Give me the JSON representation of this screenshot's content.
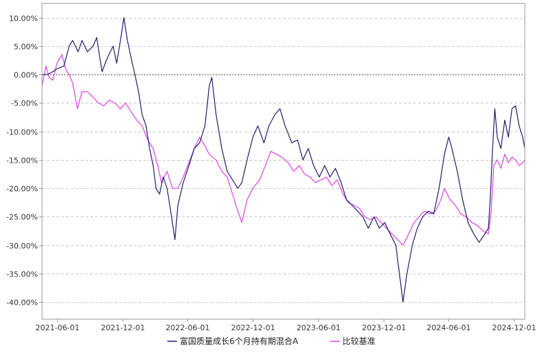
{
  "chart_data": {
    "type": "line",
    "title": "",
    "xlabel": "",
    "ylabel": "",
    "ylim": [
      -43.0,
      12.5
    ],
    "xlim": [
      "2021-04-20",
      "2024-12-31"
    ],
    "grid": true,
    "legend_position": "bottom",
    "y_ticks": [
      10,
      5,
      0,
      -5,
      -10,
      -15,
      -20,
      -25,
      -30,
      -35,
      -40
    ],
    "y_tick_labels": [
      "10.00%",
      "5.00%",
      "0.00%",
      "-5.00%",
      "-10.00%",
      "-15.00%",
      "-20.00%",
      "-25.00%",
      "-30.00%",
      "-35.00%",
      "-40.00%"
    ],
    "x_ticks": [
      "2021-06-01",
      "2021-12-01",
      "2022-06-01",
      "2022-12-01",
      "2023-06-01",
      "2023-12-01",
      "2024-06-01",
      "2024-12-01"
    ],
    "series": [
      {
        "name": "富国质量成长6个月持有期混合A",
        "color": "#1c1c6b",
        "points": [
          [
            "2021-04-20",
            0.0
          ],
          [
            "2021-05-05",
            0.0
          ],
          [
            "2021-05-20",
            0.5
          ],
          [
            "2021-06-01",
            1.0
          ],
          [
            "2021-06-20",
            1.5
          ],
          [
            "2021-07-05",
            5.0
          ],
          [
            "2021-07-15",
            6.0
          ],
          [
            "2021-07-30",
            4.0
          ],
          [
            "2021-08-10",
            6.0
          ],
          [
            "2021-08-25",
            4.0
          ],
          [
            "2021-09-10",
            5.0
          ],
          [
            "2021-09-20",
            6.5
          ],
          [
            "2021-10-05",
            0.5
          ],
          [
            "2021-10-20",
            3.0
          ],
          [
            "2021-11-05",
            5.0
          ],
          [
            "2021-11-15",
            2.0
          ],
          [
            "2021-11-28",
            7.0
          ],
          [
            "2021-12-05",
            10.0
          ],
          [
            "2021-12-15",
            6.0
          ],
          [
            "2021-12-25",
            3.0
          ],
          [
            "2022-01-05",
            0.0
          ],
          [
            "2022-01-15",
            -3.0
          ],
          [
            "2022-01-25",
            -7.0
          ],
          [
            "2022-02-05",
            -9.0
          ],
          [
            "2022-02-15",
            -13.0
          ],
          [
            "2022-02-25",
            -16.0
          ],
          [
            "2022-03-05",
            -20.0
          ],
          [
            "2022-03-15",
            -21.0
          ],
          [
            "2022-03-25",
            -18.0
          ],
          [
            "2022-04-05",
            -20.0
          ],
          [
            "2022-04-15",
            -24.0
          ],
          [
            "2022-04-27",
            -29.0
          ],
          [
            "2022-05-05",
            -23.0
          ],
          [
            "2022-05-20",
            -19.0
          ],
          [
            "2022-06-05",
            -16.0
          ],
          [
            "2022-06-20",
            -13.0
          ],
          [
            "2022-07-05",
            -12.0
          ],
          [
            "2022-07-20",
            -9.0
          ],
          [
            "2022-08-01",
            -2.0
          ],
          [
            "2022-08-08",
            -0.5
          ],
          [
            "2022-08-20",
            -7.0
          ],
          [
            "2022-09-05",
            -13.0
          ],
          [
            "2022-09-20",
            -17.0
          ],
          [
            "2022-10-05",
            -18.5
          ],
          [
            "2022-10-20",
            -20.0
          ],
          [
            "2022-10-31",
            -19.0
          ],
          [
            "2022-11-15",
            -15.0
          ],
          [
            "2022-12-01",
            -11.0
          ],
          [
            "2022-12-15",
            -9.0
          ],
          [
            "2023-01-01",
            -12.0
          ],
          [
            "2023-01-15",
            -9.0
          ],
          [
            "2023-02-01",
            -7.0
          ],
          [
            "2023-02-15",
            -6.0
          ],
          [
            "2023-03-01",
            -9.0
          ],
          [
            "2023-03-20",
            -12.0
          ],
          [
            "2023-04-05",
            -11.5
          ],
          [
            "2023-04-20",
            -15.0
          ],
          [
            "2023-05-05",
            -13.0
          ],
          [
            "2023-05-20",
            -16.0
          ],
          [
            "2023-06-05",
            -18.0
          ],
          [
            "2023-06-20",
            -16.0
          ],
          [
            "2023-07-05",
            -18.0
          ],
          [
            "2023-07-20",
            -16.5
          ],
          [
            "2023-08-05",
            -19.0
          ],
          [
            "2023-08-20",
            -22.0
          ],
          [
            "2023-09-05",
            -23.0
          ],
          [
            "2023-09-20",
            -24.0
          ],
          [
            "2023-10-05",
            -25.0
          ],
          [
            "2023-10-20",
            -27.0
          ],
          [
            "2023-11-05",
            -25.0
          ],
          [
            "2023-11-20",
            -27.0
          ],
          [
            "2023-12-05",
            -26.0
          ],
          [
            "2023-12-20",
            -28.0
          ],
          [
            "2024-01-05",
            -30.0
          ],
          [
            "2024-01-15",
            -35.0
          ],
          [
            "2024-01-25",
            -40.0
          ],
          [
            "2024-02-05",
            -35.0
          ],
          [
            "2024-02-20",
            -30.0
          ],
          [
            "2024-03-05",
            -27.0
          ],
          [
            "2024-03-20",
            -25.0
          ],
          [
            "2024-04-05",
            -24.0
          ],
          [
            "2024-04-20",
            -24.5
          ],
          [
            "2024-05-05",
            -20.0
          ],
          [
            "2024-05-20",
            -14.0
          ],
          [
            "2024-06-01",
            -11.0
          ],
          [
            "2024-06-10",
            -13.0
          ],
          [
            "2024-06-25",
            -17.0
          ],
          [
            "2024-07-10",
            -22.0
          ],
          [
            "2024-07-25",
            -26.0
          ],
          [
            "2024-08-10",
            -28.0
          ],
          [
            "2024-08-25",
            -29.5
          ],
          [
            "2024-09-10",
            -28.0
          ],
          [
            "2024-09-20",
            -27.0
          ],
          [
            "2024-09-25",
            -22.0
          ],
          [
            "2024-10-01",
            -14.0
          ],
          [
            "2024-10-08",
            -6.0
          ],
          [
            "2024-10-15",
            -11.0
          ],
          [
            "2024-10-25",
            -13.0
          ],
          [
            "2024-11-05",
            -8.0
          ],
          [
            "2024-11-15",
            -11.0
          ],
          [
            "2024-11-25",
            -6.0
          ],
          [
            "2024-12-05",
            -5.5
          ],
          [
            "2024-12-15",
            -9.0
          ],
          [
            "2024-12-25",
            -11.0
          ],
          [
            "2024-12-31",
            -13.0
          ]
        ]
      },
      {
        "name": "比较基准",
        "color": "#e040e8",
        "points": [
          [
            "2021-04-20",
            -2.0
          ],
          [
            "2021-05-01",
            1.5
          ],
          [
            "2021-05-10",
            -0.5
          ],
          [
            "2021-05-20",
            -1.0
          ],
          [
            "2021-06-01",
            2.0
          ],
          [
            "2021-06-15",
            3.5
          ],
          [
            "2021-06-25",
            1.0
          ],
          [
            "2021-07-05",
            0.0
          ],
          [
            "2021-07-15",
            -1.5
          ],
          [
            "2021-07-28",
            -6.0
          ],
          [
            "2021-08-10",
            -3.0
          ],
          [
            "2021-08-25",
            -3.0
          ],
          [
            "2021-09-10",
            -4.0
          ],
          [
            "2021-09-25",
            -5.0
          ],
          [
            "2021-10-10",
            -5.5
          ],
          [
            "2021-10-25",
            -4.5
          ],
          [
            "2021-11-10",
            -5.0
          ],
          [
            "2021-11-25",
            -6.0
          ],
          [
            "2021-12-10",
            -5.0
          ],
          [
            "2021-12-25",
            -6.5
          ],
          [
            "2022-01-10",
            -8.0
          ],
          [
            "2022-01-25",
            -9.0
          ],
          [
            "2022-02-10",
            -11.5
          ],
          [
            "2022-02-25",
            -13.0
          ],
          [
            "2022-03-10",
            -16.0
          ],
          [
            "2022-03-20",
            -19.0
          ],
          [
            "2022-04-05",
            -17.0
          ],
          [
            "2022-04-20",
            -20.0
          ],
          [
            "2022-05-05",
            -20.0
          ],
          [
            "2022-05-20",
            -18.0
          ],
          [
            "2022-06-05",
            -15.5
          ],
          [
            "2022-06-20",
            -13.0
          ],
          [
            "2022-07-05",
            -11.0
          ],
          [
            "2022-07-15",
            -12.0
          ],
          [
            "2022-08-01",
            -14.0
          ],
          [
            "2022-08-20",
            -15.0
          ],
          [
            "2022-09-05",
            -17.0
          ],
          [
            "2022-09-20",
            -18.0
          ],
          [
            "2022-10-05",
            -21.0
          ],
          [
            "2022-10-20",
            -24.0
          ],
          [
            "2022-10-31",
            -26.0
          ],
          [
            "2022-11-15",
            -22.0
          ],
          [
            "2022-12-01",
            -20.0
          ],
          [
            "2022-12-20",
            -18.5
          ],
          [
            "2023-01-05",
            -16.0
          ],
          [
            "2023-01-20",
            -13.5
          ],
          [
            "2023-02-05",
            -14.0
          ],
          [
            "2023-02-20",
            -14.5
          ],
          [
            "2023-03-10",
            -15.5
          ],
          [
            "2023-03-25",
            -17.0
          ],
          [
            "2023-04-10",
            -16.0
          ],
          [
            "2023-04-25",
            -17.5
          ],
          [
            "2023-05-10",
            -18.0
          ],
          [
            "2023-05-25",
            -19.0
          ],
          [
            "2023-06-10",
            -18.5
          ],
          [
            "2023-06-25",
            -18.0
          ],
          [
            "2023-07-10",
            -19.5
          ],
          [
            "2023-07-25",
            -18.5
          ],
          [
            "2023-08-10",
            -21.0
          ],
          [
            "2023-08-25",
            -22.5
          ],
          [
            "2023-09-10",
            -23.0
          ],
          [
            "2023-09-25",
            -23.5
          ],
          [
            "2023-10-10",
            -25.0
          ],
          [
            "2023-10-25",
            -25.5
          ],
          [
            "2023-11-10",
            -25.0
          ],
          [
            "2023-11-25",
            -26.0
          ],
          [
            "2023-12-10",
            -27.0
          ],
          [
            "2023-12-25",
            -28.0
          ],
          [
            "2024-01-10",
            -29.0
          ],
          [
            "2024-01-25",
            -30.0
          ],
          [
            "2024-02-10",
            -28.0
          ],
          [
            "2024-02-25",
            -26.0
          ],
          [
            "2024-03-10",
            -25.0
          ],
          [
            "2024-03-25",
            -24.0
          ],
          [
            "2024-04-10",
            -24.5
          ],
          [
            "2024-04-25",
            -24.0
          ],
          [
            "2024-05-10",
            -22.0
          ],
          [
            "2024-05-20",
            -20.0
          ],
          [
            "2024-06-05",
            -22.0
          ],
          [
            "2024-06-20",
            -23.0
          ],
          [
            "2024-07-05",
            -24.5
          ],
          [
            "2024-07-20",
            -25.0
          ],
          [
            "2024-08-05",
            -26.0
          ],
          [
            "2024-08-20",
            -26.5
          ],
          [
            "2024-09-05",
            -27.5
          ],
          [
            "2024-09-20",
            -28.0
          ],
          [
            "2024-09-28",
            -24.0
          ],
          [
            "2024-10-05",
            -16.0
          ],
          [
            "2024-10-15",
            -15.0
          ],
          [
            "2024-10-25",
            -16.5
          ],
          [
            "2024-11-05",
            -14.0
          ],
          [
            "2024-11-15",
            -15.5
          ],
          [
            "2024-11-25",
            -14.5
          ],
          [
            "2024-12-05",
            -15.0
          ],
          [
            "2024-12-15",
            -16.0
          ],
          [
            "2024-12-25",
            -15.5
          ],
          [
            "2024-12-31",
            -15.0
          ]
        ]
      }
    ]
  }
}
